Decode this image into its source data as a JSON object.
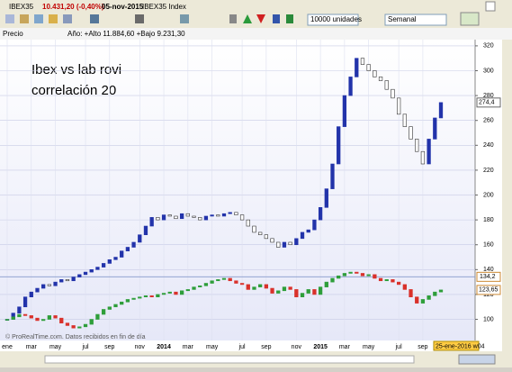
{
  "toolbar": {
    "symbol": "IBEX35",
    "quote": "10.431,20 (-0,40%)",
    "date": "05-nov-2015",
    "name": "IBEX35 Index",
    "units": "10000 unidades",
    "period": "Semanal"
  },
  "pane": {
    "label": "Precio",
    "info": "Año: +Alto 11.884,60 +Bajo 9.231,30"
  },
  "chart_data": {
    "type": "candlestick",
    "annotations": [
      "Ibex vs lab rovi",
      "correlación 20"
    ],
    "credit": "© ProRealTime.com. Datos recibidos en fin de día",
    "cursor_date": "25-ene-2016 w04",
    "categories": [
      "ene",
      null,
      null,
      null,
      "mar",
      null,
      null,
      null,
      "may",
      null,
      null,
      null,
      null,
      "jul",
      null,
      null,
      null,
      "sep",
      null,
      null,
      null,
      null,
      "nov",
      null,
      null,
      null,
      "2014",
      null,
      null,
      null,
      "mar",
      null,
      null,
      null,
      "may",
      null,
      null,
      null,
      null,
      "jul",
      null,
      null,
      null,
      "sep",
      null,
      null,
      null,
      null,
      "nov",
      null,
      null,
      null,
      "2015",
      null,
      null,
      null,
      "mar",
      null,
      null,
      null,
      "may",
      null,
      null,
      null,
      null,
      "jul",
      null,
      null,
      null,
      "sep",
      null,
      null,
      null
    ],
    "series": [
      {
        "up_color": "#2233aa",
        "down_color": "#ffffff",
        "values": [
          100,
          105,
          110,
          118,
          122,
          125,
          128,
          127,
          130,
          132,
          131,
          134,
          136,
          138,
          140,
          142,
          145,
          148,
          150,
          155,
          158,
          162,
          168,
          175,
          182,
          180,
          184,
          183,
          181,
          185,
          183,
          182,
          180,
          183,
          184,
          183,
          185,
          186,
          184,
          180,
          175,
          170,
          168,
          165,
          162,
          158,
          162,
          160,
          165,
          170,
          172,
          180,
          190,
          205,
          225,
          255,
          280,
          295,
          310,
          305,
          300,
          295,
          292,
          285,
          278,
          265,
          255,
          245,
          235,
          225,
          245,
          262,
          274.4
        ],
        "last_label": "274,4"
      },
      {
        "up_color": "#2e9e3a",
        "down_color": "#d9312b",
        "values": [
          100,
          102,
          104,
          103,
          101,
          99,
          100,
          103,
          101,
          97,
          95,
          93,
          94,
          96,
          100,
          104,
          108,
          110,
          112,
          114,
          116,
          117,
          118,
          119,
          118,
          120,
          121,
          122,
          120,
          123,
          124,
          126,
          127,
          129,
          131,
          132,
          133,
          131,
          129,
          128,
          124,
          126,
          128,
          125,
          121,
          123,
          126,
          124,
          118,
          121,
          124,
          120,
          126,
          130,
          133,
          135,
          137,
          138,
          137,
          135,
          136,
          133,
          131,
          132,
          130,
          128,
          124,
          118,
          113,
          116,
          119,
          122,
          123.65
        ],
        "last_label": "123,65"
      }
    ],
    "hline": {
      "value": 134.2,
      "label": "134,2",
      "color": "#8899cc"
    },
    "ylim": [
      83,
      325
    ],
    "yticks": [
      100,
      120,
      140,
      160,
      180,
      200,
      220,
      240,
      260,
      280,
      300,
      320
    ],
    "grid": true
  }
}
